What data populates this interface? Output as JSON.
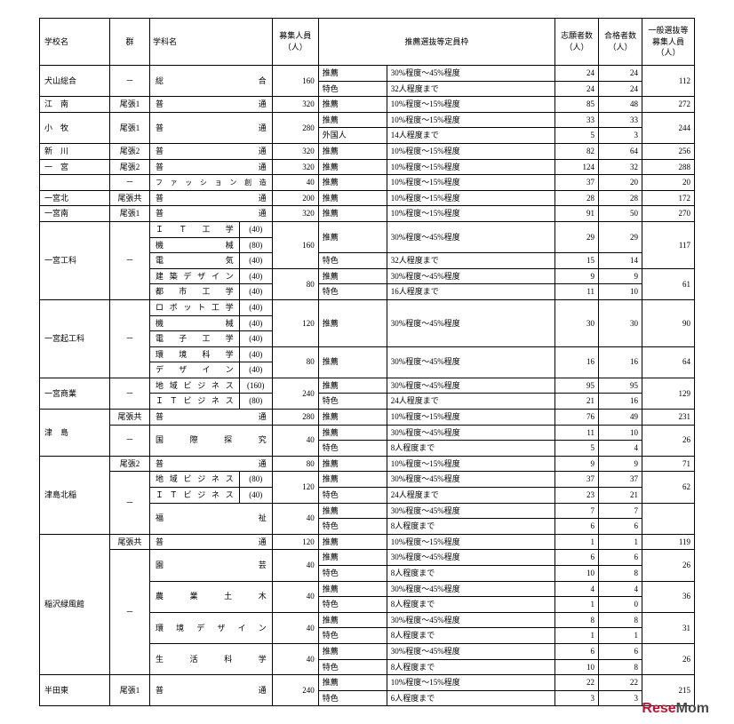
{
  "headers": {
    "school": "学校名",
    "group": "群",
    "dept": "学科名",
    "capacity": "募集人員\n（人）",
    "selection": "推薦選抜等定員枠",
    "applicants": "志願者数\n（人）",
    "passed": "合格者数\n（人）",
    "general": "一般選抜等募集人員（人）"
  },
  "labels": {
    "suisen": "推薦",
    "tokushoku": "特色",
    "gaikoku": "外国人"
  },
  "logo": {
    "r": "Rese",
    "m": "Mom"
  },
  "rows": [
    {
      "school": "犬山総合",
      "group": "－",
      "dept": "総　合",
      "cap": "160",
      "lines": [
        [
          "推薦",
          "30%程度～45%程度",
          "24",
          "24"
        ],
        [
          "特色",
          "32人程度まで",
          "24",
          "24"
        ]
      ],
      "gen": "112"
    },
    {
      "school": "江　南",
      "group": "尾張1",
      "dept": "普　通",
      "cap": "320",
      "lines": [
        [
          "推薦",
          "10%程度～15%程度",
          "85",
          "48"
        ]
      ],
      "gen": "272"
    },
    {
      "school": "小　牧",
      "group": "尾張1",
      "dept": "普　通",
      "cap": "280",
      "lines": [
        [
          "推薦",
          "10%程度～15%程度",
          "33",
          "33"
        ],
        [
          "外国人",
          "14人程度まで",
          "5",
          "3"
        ]
      ],
      "gen": "244"
    },
    {
      "school": "新　川",
      "group": "尾張2",
      "dept": "普　通",
      "cap": "320",
      "lines": [
        [
          "推薦",
          "10%程度～15%程度",
          "82",
          "64"
        ]
      ],
      "gen": "256"
    },
    {
      "school": "一　宮",
      "group": "尾張2",
      "dept": "普　通",
      "cap": "320",
      "lines": [
        [
          "推薦",
          "10%程度～15%程度",
          "124",
          "32"
        ]
      ],
      "gen": "288",
      "noschoolborder": true
    },
    {
      "school": "",
      "group": "－",
      "dept": "ファッション創造",
      "cap": "40",
      "lines": [
        [
          "推薦",
          "10%程度～15%程度",
          "37",
          "20"
        ]
      ],
      "gen": "20",
      "sm": true
    },
    {
      "school": "一宮北",
      "group": "尾張共",
      "dept": "普　通",
      "cap": "200",
      "lines": [
        [
          "推薦",
          "10%程度～15%程度",
          "28",
          "28"
        ]
      ],
      "gen": "172"
    },
    {
      "school": "一宮南",
      "group": "尾張1",
      "dept": "普　通",
      "cap": "320",
      "lines": [
        [
          "推薦",
          "10%程度～15%程度",
          "91",
          "50"
        ]
      ],
      "gen": "270"
    }
  ],
  "ichinomiya_kouka": {
    "school": "一宮工科",
    "group": "－",
    "b1": {
      "depts": [
        [
          "ＩＴ工学",
          "40"
        ],
        [
          "機　械",
          "80"
        ],
        [
          "電　気",
          "40"
        ]
      ],
      "cap": "160",
      "lines": [
        [
          "推薦",
          "30%程度～45%程度",
          "29",
          "29"
        ],
        [
          "特色",
          "32人程度まで",
          "15",
          "14"
        ]
      ],
      "gen": "117"
    },
    "b2": {
      "depts": [
        [
          "建築デザイン",
          "40"
        ],
        [
          "都市工学",
          "40"
        ]
      ],
      "cap": "80",
      "lines": [
        [
          "推薦",
          "30%程度～45%程度",
          "9",
          "9"
        ],
        [
          "特色",
          "16人程度まで",
          "11",
          "10"
        ]
      ],
      "gen": "61"
    }
  },
  "ichinomiya_kikouka": {
    "school": "一宮起工科",
    "group": "－",
    "b1": {
      "depts": [
        [
          "ロボット工学",
          "40"
        ],
        [
          "機　械",
          "40"
        ],
        [
          "電子工学",
          "40"
        ]
      ],
      "cap": "120",
      "lines": [
        [
          "推薦",
          "30%程度～45%程度",
          "30",
          "30"
        ]
      ],
      "gen": "90"
    },
    "b2": {
      "depts": [
        [
          "環境科学",
          "40"
        ],
        [
          "デザイン",
          "40"
        ]
      ],
      "cap": "80",
      "lines": [
        [
          "推薦",
          "30%程度～45%程度",
          "16",
          "16"
        ]
      ],
      "gen": "64"
    }
  },
  "ichinomiya_shogyo": {
    "school": "一宮商業",
    "group": "－",
    "depts": [
      [
        "地域ビジネス",
        "160"
      ],
      [
        "ＩＴビジネス",
        "80"
      ]
    ],
    "cap": "240",
    "lines": [
      [
        "推薦",
        "30%程度～45%程度",
        "95",
        "95"
      ],
      [
        "特色",
        "24人程度まで",
        "21",
        "16"
      ]
    ],
    "gen": "129"
  },
  "tsushima": {
    "school": "津　島",
    "r1": {
      "group": "尾張共",
      "dept": "普　通",
      "cap": "280",
      "lines": [
        [
          "推薦",
          "10%程度～15%程度",
          "76",
          "49"
        ]
      ],
      "gen": "231"
    },
    "r2": {
      "group": "－",
      "dept": "国際探究",
      "cap": "40",
      "lines": [
        [
          "推薦",
          "30%程度～45%程度",
          "11",
          "10"
        ],
        [
          "特色",
          "8人程度まで",
          "5",
          "4"
        ]
      ],
      "gen": "26"
    }
  },
  "tsushima_kita": {
    "school": "津島北稲",
    "r1": {
      "group": "尾張2",
      "dept": "普　通",
      "cap": "80",
      "lines": [
        [
          "推薦",
          "10%程度～15%程度",
          "9",
          "9"
        ]
      ],
      "gen": "71"
    },
    "r2": {
      "group": "－",
      "depts": [
        [
          "地域ビジネス",
          "80"
        ],
        [
          "ＩＴビジネス",
          "40"
        ]
      ],
      "cap": "120",
      "lines": [
        [
          "推薦",
          "30%程度～45%程度",
          "37",
          "37"
        ],
        [
          "特色",
          "24人程度まで",
          "23",
          "21"
        ]
      ],
      "gen": "62"
    },
    "r3": {
      "group": "",
      "dept": "福　祉",
      "cap": "40",
      "lines": [
        [
          "推薦",
          "30%程度～45%程度",
          "7",
          "7"
        ],
        [
          "特色",
          "8人程度まで",
          "6",
          "6"
        ]
      ],
      "gen": ""
    }
  },
  "inazawa": {
    "school": "稲沢緑風館",
    "r1": {
      "group": "尾張共",
      "dept": "普　通",
      "cap": "120",
      "lines": [
        [
          "推薦",
          "10%程度～15%程度",
          "1",
          "1"
        ]
      ],
      "gen": "119"
    },
    "blocks": [
      {
        "dept": "園　芸",
        "cap": "40",
        "lines": [
          [
            "推薦",
            "30%程度～45%程度",
            "6",
            "6"
          ],
          [
            "特色",
            "8人程度まで",
            "10",
            "8"
          ]
        ],
        "gen": "26"
      },
      {
        "dept": "農業土木",
        "cap": "40",
        "lines": [
          [
            "推薦",
            "30%程度～45%程度",
            "4",
            "4"
          ],
          [
            "特色",
            "8人程度まで",
            "1",
            "0"
          ]
        ],
        "gen": "36"
      },
      {
        "dept": "環境デザイン",
        "cap": "40",
        "lines": [
          [
            "推薦",
            "30%程度～45%程度",
            "8",
            "8"
          ],
          [
            "特色",
            "8人程度まで",
            "1",
            "1"
          ]
        ],
        "gen": "31"
      },
      {
        "dept": "生活科学",
        "cap": "40",
        "lines": [
          [
            "推薦",
            "30%程度～45%程度",
            "6",
            "6"
          ],
          [
            "特色",
            "8人程度まで",
            "10",
            "8"
          ]
        ],
        "gen": "26"
      }
    ],
    "group2": "－"
  },
  "handa": {
    "school": "半田東",
    "group": "尾張1",
    "dept": "普　通",
    "cap": "240",
    "lines": [
      [
        "推薦",
        "10%程度～15%程度",
        "22",
        "22"
      ],
      [
        "特色",
        "6人程度まで",
        "3",
        "3"
      ]
    ],
    "gen": "215"
  }
}
